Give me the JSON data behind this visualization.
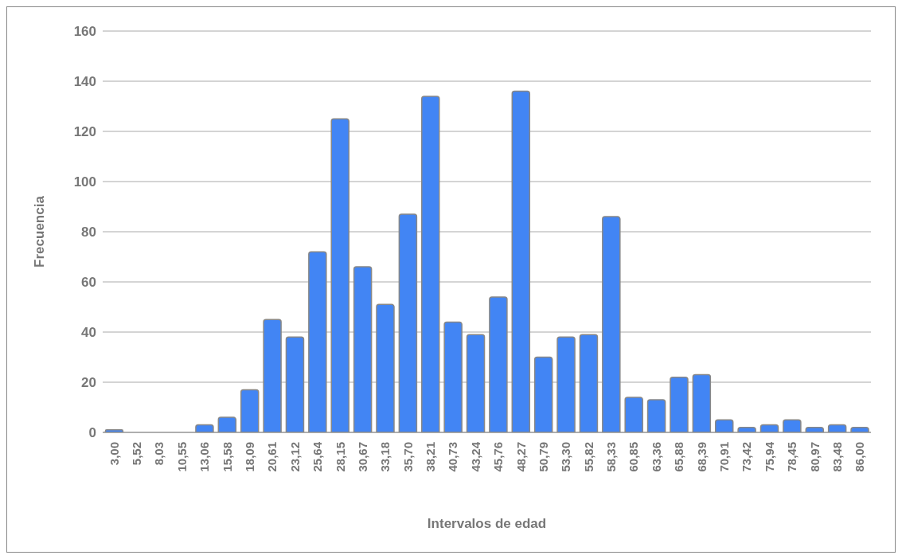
{
  "chart_data": {
    "type": "bar",
    "xlabel": "Intervalos de edad",
    "ylabel": "Frecuencia",
    "categories": [
      "3,00",
      "5,52",
      "8,03",
      "10,55",
      "13,06",
      "15,58",
      "18,09",
      "20,61",
      "23,12",
      "25,64",
      "28,15",
      "30,67",
      "33,18",
      "35,70",
      "38,21",
      "40,73",
      "43,24",
      "45,76",
      "48,27",
      "50,79",
      "53,30",
      "55,82",
      "58,33",
      "60,85",
      "63,36",
      "65,88",
      "68,39",
      "70,91",
      "73,42",
      "75,94",
      "78,45",
      "80,97",
      "83,48",
      "86,00"
    ],
    "values": [
      1,
      0,
      0,
      0,
      3,
      6,
      17,
      45,
      38,
      72,
      125,
      66,
      51,
      87,
      134,
      44,
      39,
      54,
      136,
      30,
      38,
      39,
      86,
      14,
      13,
      22,
      23,
      5,
      2,
      3,
      5,
      2,
      3,
      2
    ],
    "color": "#4285f4",
    "ylim": [
      0,
      160
    ],
    "yticks": [
      0,
      20,
      40,
      60,
      80,
      100,
      120,
      140,
      160
    ],
    "grid": "y",
    "legend": false
  }
}
